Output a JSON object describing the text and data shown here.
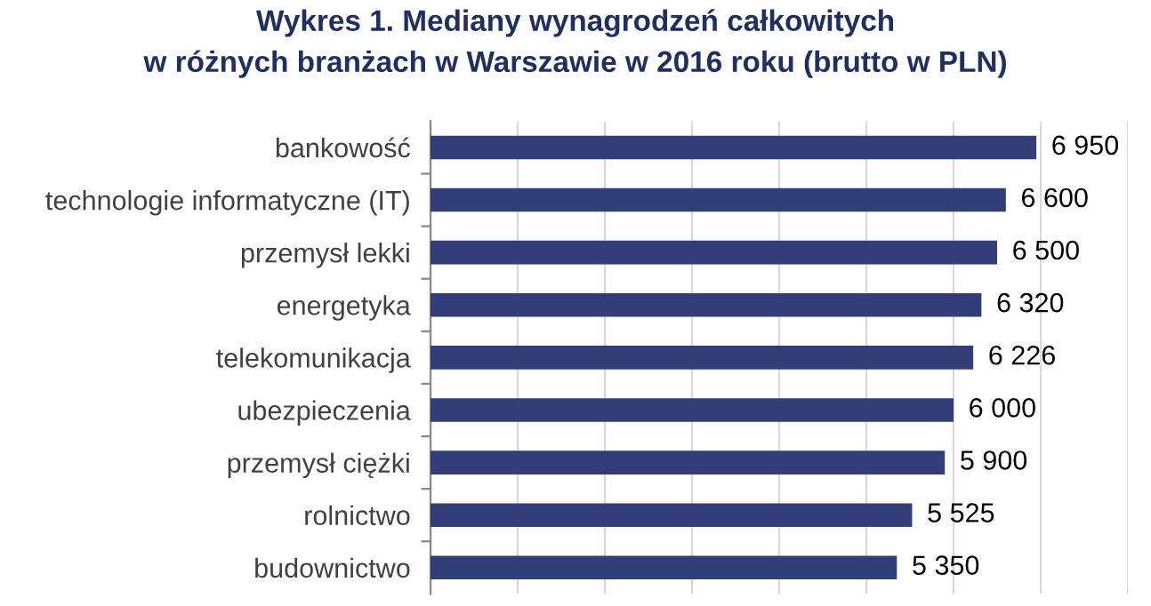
{
  "chart_data": {
    "type": "bar",
    "orientation": "horizontal",
    "title": "Wykres 1. Mediany wynagrodzeń całkowitych\nw różnych branżach w Warszawie w 2016 roku (brutto w PLN)",
    "categories": [
      "bankowość",
      "technologie informatyczne (IT)",
      "przemysł lekki",
      "energetyka",
      "telekomunikacja",
      "ubezpieczenia",
      "przemysł ciężki",
      "rolnictwo",
      "budownictwo"
    ],
    "values": [
      6950,
      6600,
      6500,
      6320,
      6226,
      6000,
      5900,
      5525,
      5350
    ],
    "value_labels": [
      "6 950",
      "6 600",
      "6 500",
      "6 320",
      "6 226",
      "6 000",
      "5 900",
      "5 525",
      "5 350"
    ],
    "color": "#323e78",
    "xlim": [
      0,
      8000
    ],
    "xticks": [
      {
        "value": 0,
        "label": null
      },
      {
        "value": 1000,
        "label": null
      },
      {
        "value": 2000,
        "label": null
      },
      {
        "value": 3000,
        "label": null
      },
      {
        "value": 4000,
        "label": null
      },
      {
        "value": 5000,
        "label": null
      },
      {
        "value": 6000,
        "label": null
      },
      {
        "value": 7000,
        "label": null
      },
      {
        "value": 8000,
        "label": null
      }
    ],
    "grid": "x",
    "tick_labels": "y"
  }
}
